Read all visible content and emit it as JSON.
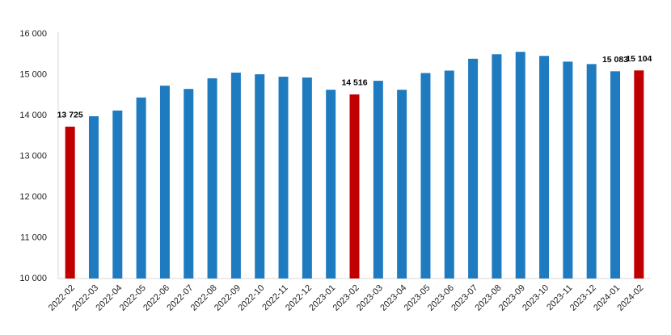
{
  "chart_data": {
    "type": "bar",
    "categories": [
      "2022-02",
      "2022-03",
      "2022-04",
      "2022-05",
      "2022-06",
      "2022-07",
      "2022-08",
      "2022-09",
      "2022-10",
      "2022-11",
      "2022-12",
      "2023-01",
      "2023-02",
      "2023-03",
      "2023-04",
      "2023-05",
      "2023-06",
      "2023-07",
      "2023-08",
      "2023-09",
      "2023-10",
      "2023-11",
      "2023-12",
      "2024-01",
      "2024-02"
    ],
    "values": [
      13725,
      13980,
      14120,
      14440,
      14730,
      14650,
      14910,
      15050,
      15010,
      14950,
      14930,
      14630,
      14516,
      14850,
      14630,
      15040,
      15100,
      15390,
      15500,
      15560,
      15460,
      15320,
      15260,
      15083,
      15104
    ],
    "value_labels": [
      "13 725",
      null,
      null,
      null,
      null,
      null,
      null,
      null,
      null,
      null,
      null,
      null,
      "14 516",
      null,
      null,
      null,
      null,
      null,
      null,
      null,
      null,
      null,
      null,
      "15 083",
      "15 104"
    ],
    "colors": [
      "#c00000",
      "#1f7bbf",
      "#1f7bbf",
      "#1f7bbf",
      "#1f7bbf",
      "#1f7bbf",
      "#1f7bbf",
      "#1f7bbf",
      "#1f7bbf",
      "#1f7bbf",
      "#1f7bbf",
      "#1f7bbf",
      "#c00000",
      "#1f7bbf",
      "#1f7bbf",
      "#1f7bbf",
      "#1f7bbf",
      "#1f7bbf",
      "#1f7bbf",
      "#1f7bbf",
      "#1f7bbf",
      "#1f7bbf",
      "#1f7bbf",
      "#1f7bbf",
      "#c00000"
    ],
    "ylim": [
      10000,
      16000
    ],
    "yticks": [
      {
        "value": 10000,
        "label": "10 000"
      },
      {
        "value": 11000,
        "label": "11 000"
      },
      {
        "value": 12000,
        "label": "12 000"
      },
      {
        "value": 13000,
        "label": "13 000"
      },
      {
        "value": 14000,
        "label": "14 000"
      },
      {
        "value": 15000,
        "label": "15 000"
      },
      {
        "value": 16000,
        "label": "16 000"
      }
    ],
    "grid": false
  }
}
